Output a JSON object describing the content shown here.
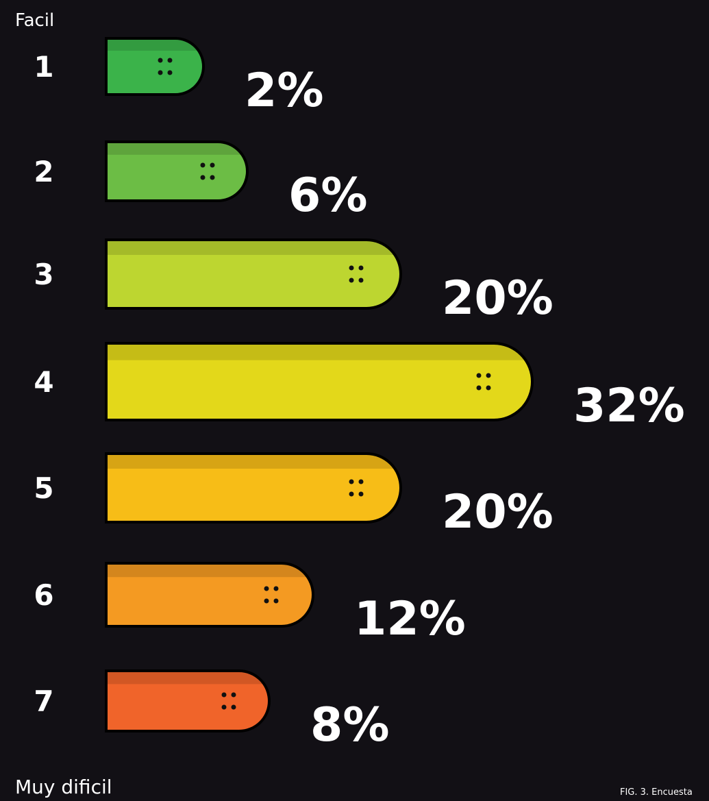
{
  "chart_data": {
    "type": "bar",
    "top_label": "Facil",
    "bottom_label": "Muy dificil",
    "caption": "FIG. 3. Encuesta",
    "categories": [
      "1",
      "2",
      "3",
      "4",
      "5",
      "6",
      "7"
    ],
    "values": [
      2,
      6,
      20,
      32,
      20,
      12,
      8
    ],
    "value_labels": [
      "2%",
      "6%",
      "20%",
      "32%",
      "20%",
      "12%",
      "8%"
    ],
    "colors": [
      "#3bb34a",
      "#6cbd45",
      "#bdd630",
      "#e3d81a",
      "#f7bd17",
      "#f49a22",
      "#f0642a"
    ]
  }
}
